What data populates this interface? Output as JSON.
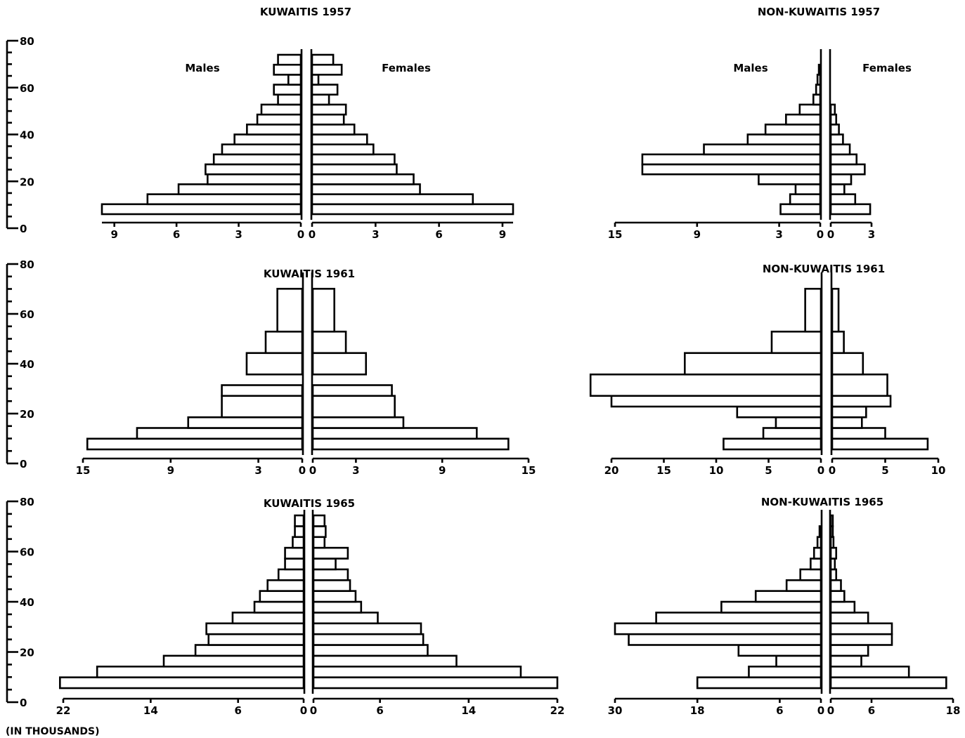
{
  "footnote": "(IN THOUSANDS)",
  "age_axis": {
    "labels": [
      "80",
      "60",
      "40",
      "20",
      "0"
    ],
    "values": [
      80,
      60,
      40,
      20,
      0
    ]
  },
  "chart_data": [
    {
      "type": "bar",
      "title": "KUWAITIS 1957",
      "male_label": "Males",
      "female_label": "Females",
      "age_groups": [
        "0-4",
        "5-9",
        "10-14",
        "15-19",
        "20-24",
        "25-29",
        "30-34",
        "35-39",
        "40-44",
        "45-49",
        "50-54",
        "55-59",
        "60-64",
        "65-69",
        "70-74",
        "75+"
      ],
      "males": [
        9.6,
        7.4,
        5.9,
        4.5,
        4.6,
        4.2,
        3.8,
        3.2,
        2.6,
        2.1,
        1.9,
        1.1,
        1.3,
        0.6,
        1.3,
        1.1
      ],
      "females": [
        9.5,
        7.6,
        5.1,
        4.8,
        4.0,
        3.9,
        2.9,
        2.6,
        2.0,
        1.5,
        1.6,
        0.8,
        1.2,
        0.3,
        1.4,
        1.0
      ],
      "male_ticks": [
        "9",
        "6",
        "3",
        "0"
      ],
      "male_tick_values": [
        9,
        6,
        3,
        0
      ],
      "female_ticks": [
        "0",
        "3",
        "6",
        "9"
      ],
      "female_tick_values": [
        0,
        3,
        6,
        9
      ]
    },
    {
      "type": "bar",
      "title": "NON-KUWAITIS 1957",
      "male_label": "Males",
      "female_label": "Females",
      "age_groups": [
        "0-4",
        "5-9",
        "10-14",
        "15-19",
        "20-24",
        "25-29",
        "30-34",
        "35-39",
        "40-44",
        "45-49",
        "50-54",
        "55-59",
        "60-64",
        "65-69",
        "70-74",
        "75+"
      ],
      "males": [
        2.9,
        2.2,
        1.8,
        4.5,
        13.0,
        13.0,
        8.5,
        5.3,
        4.0,
        2.5,
        1.5,
        0.5,
        0.3,
        0.2,
        0.1,
        0.0
      ],
      "females": [
        2.9,
        1.8,
        1.0,
        1.5,
        2.5,
        1.9,
        1.4,
        0.9,
        0.6,
        0.4,
        0.3,
        0.0,
        0.0,
        0.0,
        0.0,
        0.0
      ],
      "male_ticks": [
        "15",
        "9",
        "3",
        "0"
      ],
      "male_tick_values": [
        15,
        9,
        3,
        0
      ],
      "female_ticks": [
        "0",
        "3"
      ],
      "female_tick_values": [
        0,
        3
      ]
    },
    {
      "type": "bar",
      "title": "KUWAITIS 1961",
      "male_label": "",
      "female_label": "",
      "age_groups": [
        "0-4",
        "5-9",
        "10-14",
        "15-24",
        "25-29",
        "35-44",
        "45-54",
        "55+"
      ],
      "age_starts": [
        0,
        5,
        10,
        15,
        25,
        35,
        45,
        55
      ],
      "age_ends": [
        5,
        10,
        15,
        25,
        30,
        45,
        55,
        75
      ],
      "males": [
        14.7,
        11.3,
        7.8,
        5.5,
        5.5,
        3.8,
        2.5,
        1.7
      ],
      "females": [
        13.6,
        11.4,
        6.3,
        5.7,
        5.5,
        3.7,
        2.3,
        1.5
      ],
      "male_ticks": [
        "15",
        "9",
        "3",
        "0"
      ],
      "male_tick_values": [
        15,
        9,
        3,
        0
      ],
      "female_ticks": [
        "0",
        "3",
        "9",
        "15"
      ],
      "female_tick_values": [
        0,
        3,
        9,
        15
      ]
    },
    {
      "type": "bar",
      "title": "NON-KUWAITIS 1961",
      "male_label": "",
      "female_label": "",
      "age_groups": [
        "0-4",
        "5-9",
        "10-14",
        "15-19",
        "20-24",
        "25-34",
        "35-44",
        "45-54",
        "55+"
      ],
      "age_starts": [
        0,
        5,
        10,
        15,
        20,
        25,
        35,
        45,
        55
      ],
      "age_ends": [
        5,
        10,
        15,
        20,
        25,
        35,
        45,
        55,
        75
      ],
      "males": [
        9.3,
        5.5,
        4.3,
        8.0,
        20.0,
        22.0,
        13.0,
        4.7,
        1.5
      ],
      "females": [
        9.0,
        5.0,
        2.8,
        3.2,
        5.5,
        5.2,
        2.9,
        1.1,
        0.6
      ],
      "male_ticks": [
        "20",
        "15",
        "10",
        "5",
        "0"
      ],
      "male_tick_values": [
        20,
        15,
        10,
        5,
        0
      ],
      "female_ticks": [
        "0",
        "5",
        "10"
      ],
      "female_tick_values": [
        0,
        5,
        10
      ]
    },
    {
      "type": "bar",
      "title": "KUWAITIS 1965",
      "male_label": "",
      "female_label": "",
      "age_groups": [
        "0-4",
        "5-9",
        "10-14",
        "15-19",
        "20-24",
        "25-29",
        "30-34",
        "35-39",
        "40-44",
        "45-49",
        "50-54",
        "55-59",
        "60-64",
        "65-69",
        "70-74",
        "75+"
      ],
      "males": [
        22.3,
        18.9,
        12.8,
        9.9,
        8.7,
        8.9,
        6.5,
        4.5,
        4.0,
        3.3,
        2.3,
        1.7,
        1.7,
        1.0,
        0.8,
        0.8
      ],
      "females": [
        22.0,
        18.7,
        12.9,
        10.3,
        9.9,
        9.7,
        5.8,
        4.3,
        3.8,
        3.3,
        3.1,
        2.0,
        3.1,
        1.0,
        1.1,
        1.0
      ],
      "male_ticks": [
        "22",
        "14",
        "6",
        "0"
      ],
      "male_tick_values": [
        22,
        14,
        6,
        0
      ],
      "female_ticks": [
        "0",
        "6",
        "14",
        "22"
      ],
      "female_tick_values": [
        0,
        6,
        14,
        22
      ]
    },
    {
      "type": "bar",
      "title": "NON-KUWAITIS 1965",
      "male_label": "",
      "female_label": "",
      "age_groups": [
        "0-4",
        "5-9",
        "10-14",
        "15-19",
        "20-24",
        "25-29",
        "30-34",
        "35-39",
        "40-44",
        "45-49",
        "50-54",
        "55-59",
        "60-64",
        "65-69",
        "70-74",
        "75+"
      ],
      "males": [
        18.0,
        10.5,
        6.5,
        12.0,
        28.0,
        30.0,
        24.0,
        14.5,
        9.5,
        5.0,
        3.0,
        1.5,
        1.0,
        0.5,
        0.2,
        0.0
      ],
      "females": [
        17.0,
        11.5,
        4.5,
        5.5,
        9.0,
        9.0,
        5.5,
        3.5,
        2.0,
        1.5,
        0.8,
        0.6,
        0.8,
        0.4,
        0.3,
        0.3
      ],
      "male_ticks": [
        "30",
        "18",
        "6",
        "0"
      ],
      "male_tick_values": [
        30,
        18,
        6,
        0
      ],
      "female_ticks": [
        "0",
        "6",
        "18"
      ],
      "female_tick_values": [
        0,
        6,
        18
      ]
    }
  ]
}
